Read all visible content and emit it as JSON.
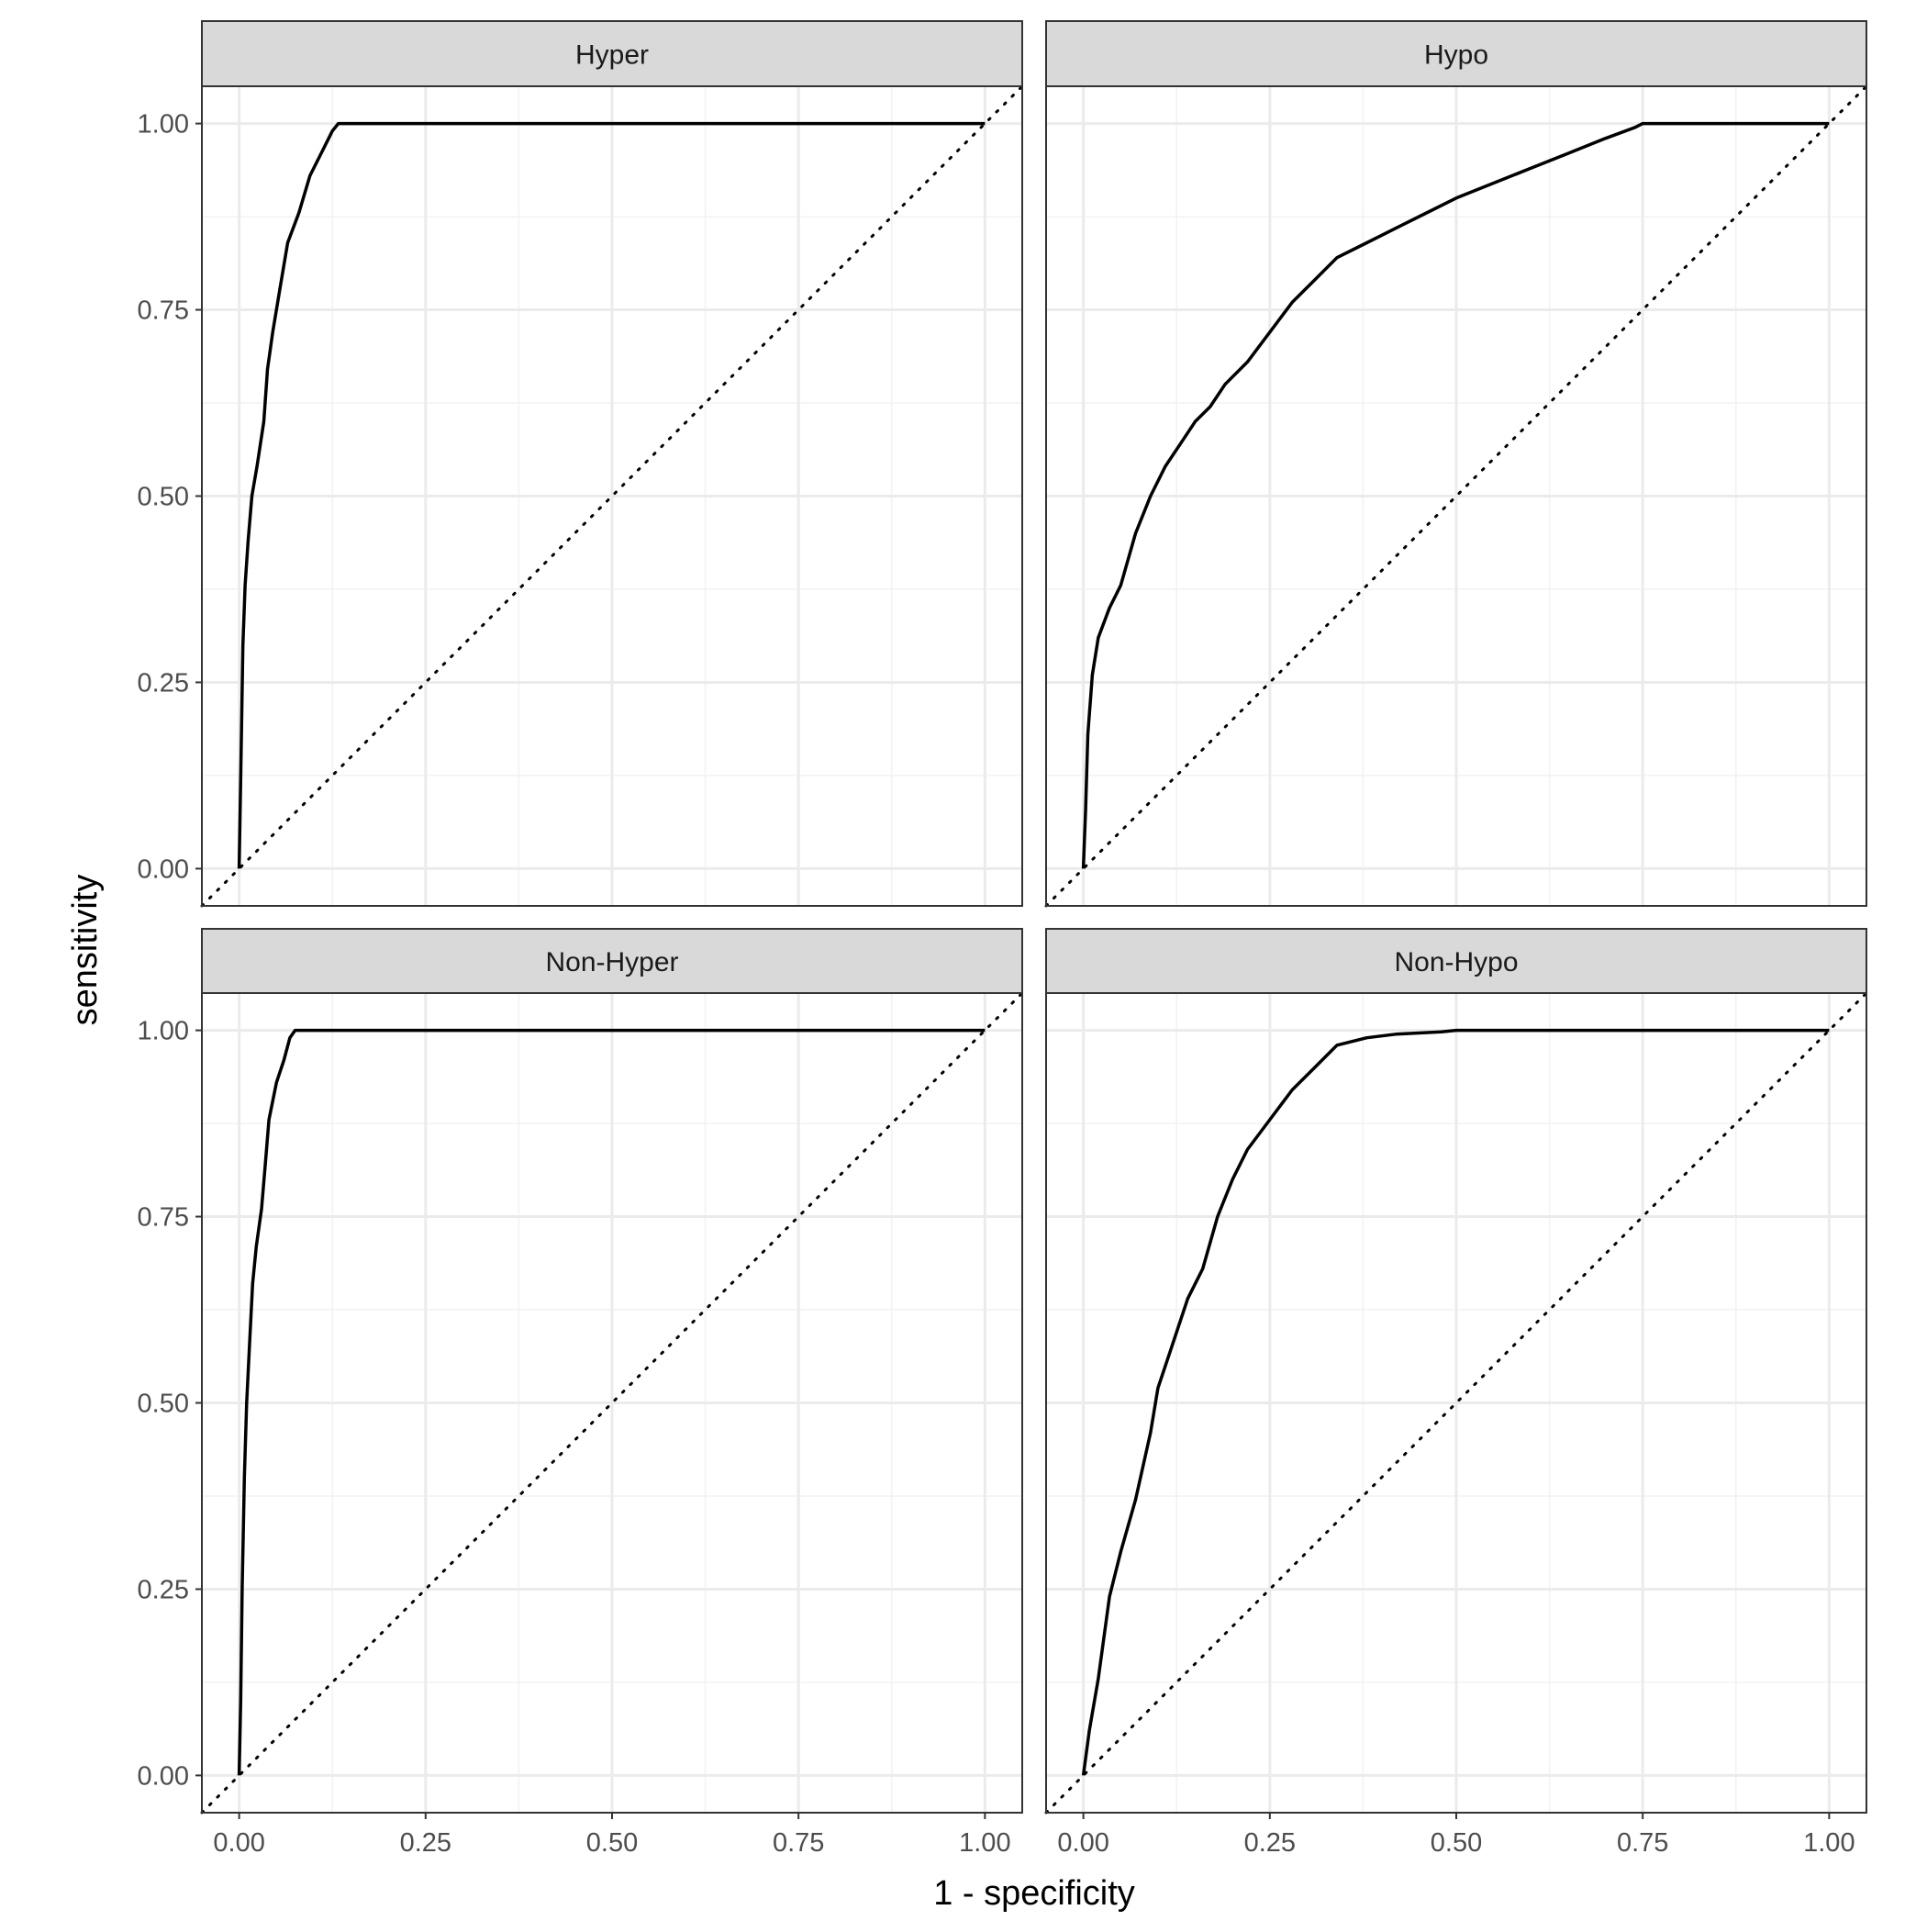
{
  "chart_data": {
    "type": "line",
    "layout": "facet-grid 2x2",
    "xlabel": "1 - specificity",
    "ylabel": "sensitivity",
    "xlim": [
      -0.05,
      1.05
    ],
    "ylim": [
      -0.05,
      1.05
    ],
    "x_ticks": [
      "0.00",
      "0.25",
      "0.50",
      "0.75",
      "1.00"
    ],
    "y_ticks": [
      "0.00",
      "0.25",
      "0.50",
      "0.75",
      "1.00"
    ],
    "grid": true,
    "reference_line": {
      "style": "dotted",
      "from": [
        0,
        0
      ],
      "to": [
        1,
        1
      ]
    },
    "line_color": "#000000",
    "strip_color": "#d9d9d9",
    "panels": [
      {
        "label": "Hyper",
        "points": [
          [
            0,
            0
          ],
          [
            0.002,
            0.12
          ],
          [
            0.005,
            0.3
          ],
          [
            0.008,
            0.38
          ],
          [
            0.012,
            0.44
          ],
          [
            0.017,
            0.5
          ],
          [
            0.024,
            0.54
          ],
          [
            0.033,
            0.6
          ],
          [
            0.038,
            0.67
          ],
          [
            0.045,
            0.72
          ],
          [
            0.055,
            0.78
          ],
          [
            0.065,
            0.84
          ],
          [
            0.08,
            0.88
          ],
          [
            0.095,
            0.93
          ],
          [
            0.11,
            0.96
          ],
          [
            0.125,
            0.99
          ],
          [
            0.133,
            1.0
          ],
          [
            1.0,
            1.0
          ]
        ]
      },
      {
        "label": "Hypo",
        "points": [
          [
            0,
            0
          ],
          [
            0.003,
            0.08
          ],
          [
            0.006,
            0.18
          ],
          [
            0.012,
            0.26
          ],
          [
            0.02,
            0.31
          ],
          [
            0.035,
            0.35
          ],
          [
            0.05,
            0.38
          ],
          [
            0.07,
            0.45
          ],
          [
            0.09,
            0.5
          ],
          [
            0.11,
            0.54
          ],
          [
            0.13,
            0.57
          ],
          [
            0.15,
            0.6
          ],
          [
            0.17,
            0.62
          ],
          [
            0.19,
            0.65
          ],
          [
            0.22,
            0.68
          ],
          [
            0.25,
            0.72
          ],
          [
            0.28,
            0.76
          ],
          [
            0.31,
            0.79
          ],
          [
            0.34,
            0.82
          ],
          [
            0.38,
            0.84
          ],
          [
            0.42,
            0.86
          ],
          [
            0.46,
            0.88
          ],
          [
            0.5,
            0.9
          ],
          [
            0.55,
            0.92
          ],
          [
            0.6,
            0.94
          ],
          [
            0.65,
            0.96
          ],
          [
            0.7,
            0.98
          ],
          [
            0.74,
            0.995
          ],
          [
            0.75,
            1.0
          ],
          [
            1.0,
            1.0
          ]
        ]
      },
      {
        "label": "Non-Hyper",
        "points": [
          [
            0,
            0
          ],
          [
            0.002,
            0.1
          ],
          [
            0.004,
            0.25
          ],
          [
            0.007,
            0.4
          ],
          [
            0.01,
            0.5
          ],
          [
            0.014,
            0.58
          ],
          [
            0.018,
            0.66
          ],
          [
            0.023,
            0.71
          ],
          [
            0.03,
            0.76
          ],
          [
            0.035,
            0.82
          ],
          [
            0.04,
            0.88
          ],
          [
            0.05,
            0.93
          ],
          [
            0.06,
            0.96
          ],
          [
            0.068,
            0.99
          ],
          [
            0.075,
            1.0
          ],
          [
            1.0,
            1.0
          ]
        ]
      },
      {
        "label": "Non-Hypo",
        "points": [
          [
            0,
            0
          ],
          [
            0.008,
            0.06
          ],
          [
            0.02,
            0.13
          ],
          [
            0.035,
            0.24
          ],
          [
            0.05,
            0.3
          ],
          [
            0.07,
            0.37
          ],
          [
            0.09,
            0.46
          ],
          [
            0.1,
            0.52
          ],
          [
            0.12,
            0.58
          ],
          [
            0.14,
            0.64
          ],
          [
            0.16,
            0.68
          ],
          [
            0.18,
            0.75
          ],
          [
            0.2,
            0.8
          ],
          [
            0.22,
            0.84
          ],
          [
            0.25,
            0.88
          ],
          [
            0.28,
            0.92
          ],
          [
            0.31,
            0.95
          ],
          [
            0.34,
            0.98
          ],
          [
            0.38,
            0.99
          ],
          [
            0.42,
            0.995
          ],
          [
            0.48,
            0.998
          ],
          [
            0.5,
            1.0
          ],
          [
            1.0,
            1.0
          ]
        ]
      }
    ]
  }
}
